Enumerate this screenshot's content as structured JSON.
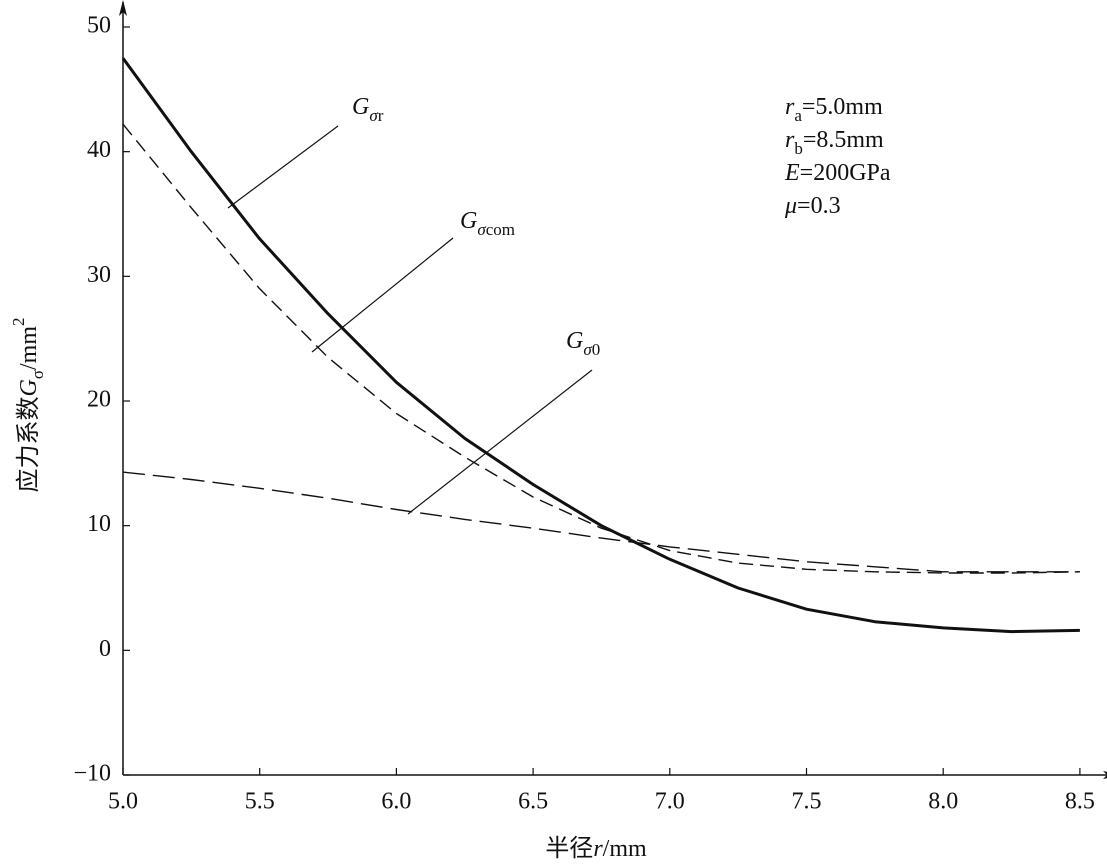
{
  "chart_data": {
    "type": "line",
    "x": [
      5.0,
      5.25,
      5.5,
      5.75,
      6.0,
      6.25,
      6.5,
      6.75,
      7.0,
      7.25,
      7.5,
      7.75,
      8.0,
      8.25,
      8.5
    ],
    "series": [
      {
        "name": "Gσr",
        "color": "#111111",
        "values": [
          47.5,
          40,
          33,
          27,
          21.5,
          17,
          13.3,
          10,
          7.3,
          5.0,
          3.3,
          2.3,
          1.8,
          1.5,
          1.6
        ]
      },
      {
        "name": "Gσcom",
        "color": "#111111",
        "values": [
          42.2,
          35.5,
          29,
          23.5,
          19,
          15.5,
          12.3,
          9.8,
          8,
          7,
          6.5,
          6.3,
          6.2,
          6.2,
          6.3
        ]
      },
      {
        "name": "Gσ0",
        "color": "#111111",
        "values": [
          14.3,
          13.7,
          13.0,
          12.2,
          11.3,
          10.5,
          9.8,
          9.0,
          8.3,
          7.7,
          7.1,
          6.7,
          6.3,
          6.3,
          6.3
        ]
      }
    ],
    "xlabel": "半径r/mm",
    "ylabel": "应力系数Gσ/mm2",
    "annotations": [
      "ra=5.0mm",
      "rb=8.5mm",
      "E=200GPa",
      "μ=0.3"
    ],
    "xlim": [
      5.0,
      8.57
    ],
    "ylim": [
      -10,
      50
    ],
    "xticks": [
      {
        "value": 5,
        "label": "5.0"
      },
      5.5,
      {
        "value": 6,
        "label": "6.0"
      },
      6.5,
      {
        "value": 7,
        "label": "7.0"
      },
      7.5,
      {
        "value": 8,
        "label": "8.0"
      },
      8.5
    ],
    "yticks": [
      {
        "value": -10,
        "label": "−10"
      },
      0,
      10,
      20,
      30,
      40,
      50
    ],
    "grid": false
  }
}
